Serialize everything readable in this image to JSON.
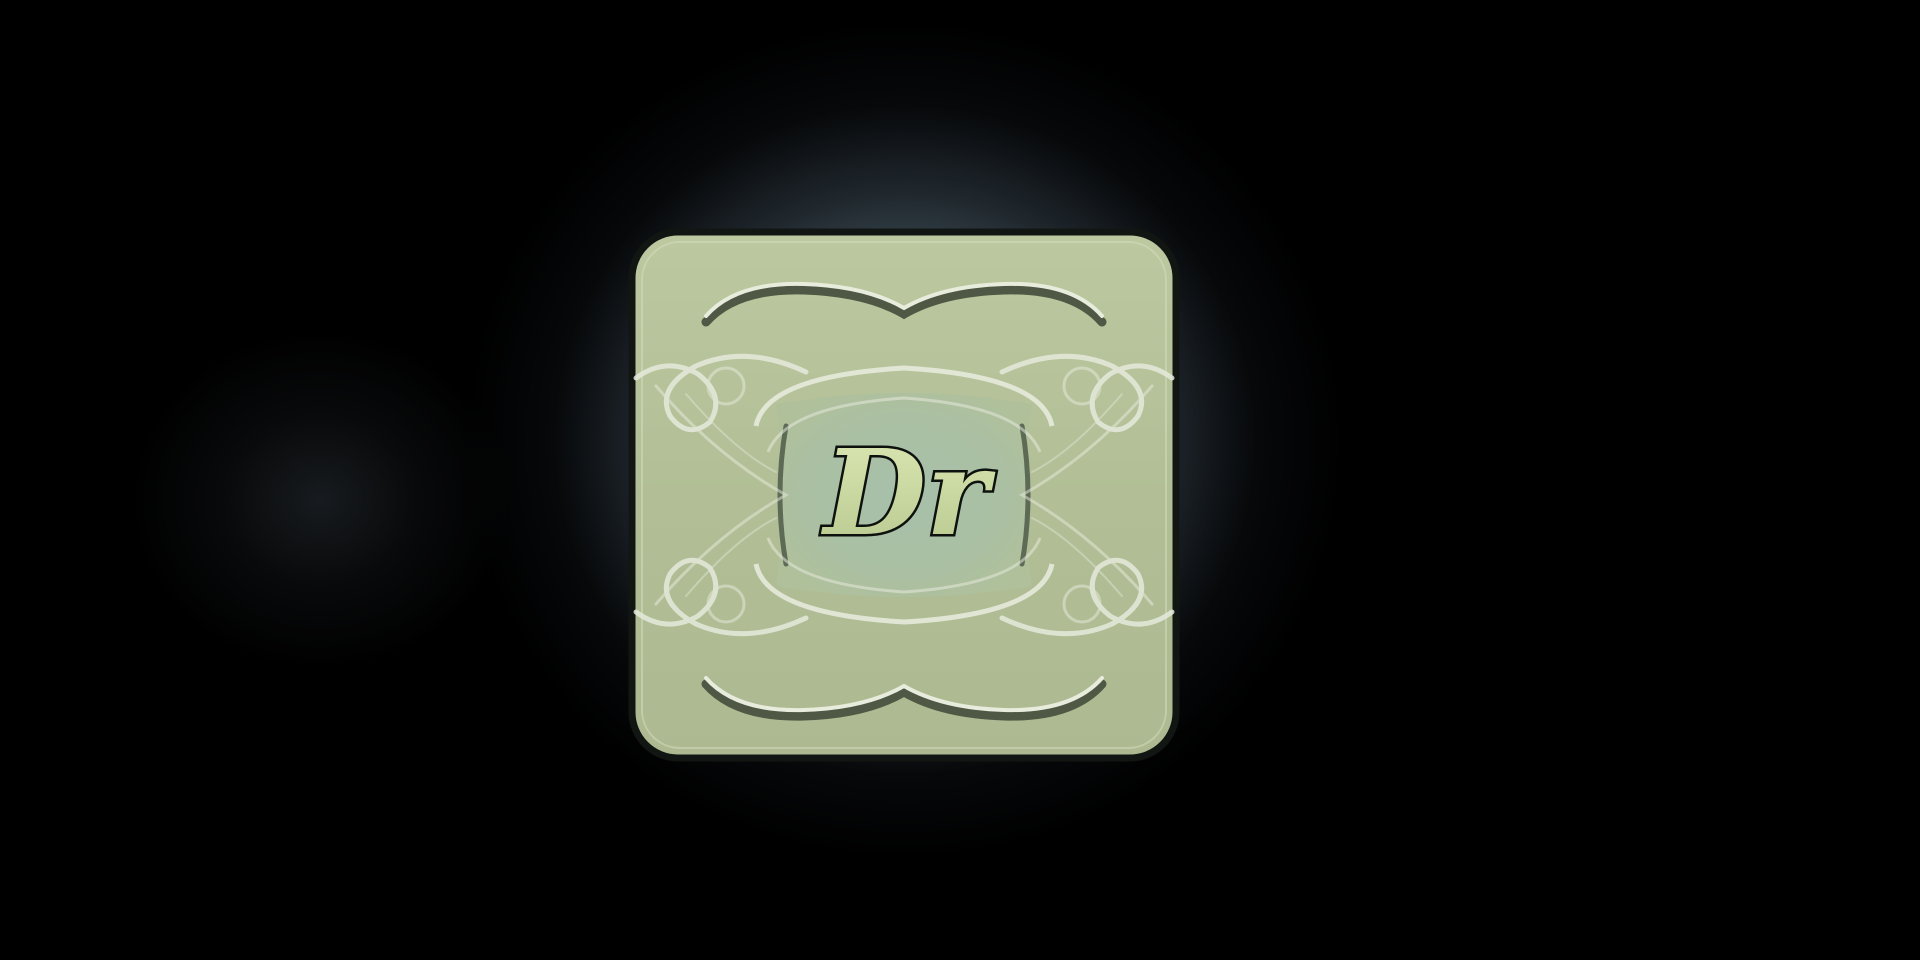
{
  "icon": {
    "name": "app-icon",
    "monogram": "Dr",
    "colors": {
      "background": "#000000",
      "glow": "#4a5a64",
      "tile": "#b6c39a",
      "tile_light": "#c9d4ad",
      "center_panel": "#a9bda4",
      "ornament": "#e6eadc",
      "ornament_shadow": "#56604a",
      "outline": "#141814",
      "letter_fill": "#c6d6a0",
      "letter_stroke": "#0e120e"
    }
  }
}
